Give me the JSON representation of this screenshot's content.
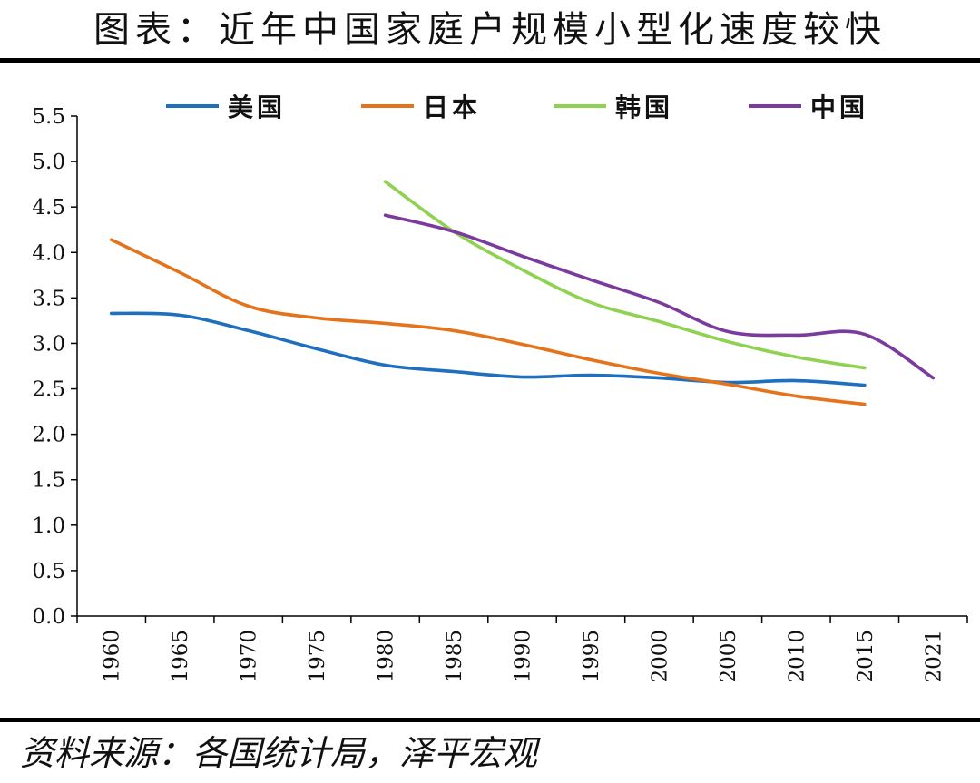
{
  "title": "图表：近年中国家庭户规模小型化速度较快",
  "source": "资料来源：各国统计局，泽平宏观",
  "chart_data": {
    "type": "line",
    "x": [
      "1960",
      "1965",
      "1970",
      "1975",
      "1980",
      "1985",
      "1990",
      "1995",
      "2000",
      "2005",
      "2010",
      "2015",
      "2021"
    ],
    "ylim": [
      0,
      5.5
    ],
    "yticks": [
      "0.0",
      "0.5",
      "1.0",
      "1.5",
      "2.0",
      "2.5",
      "3.0",
      "3.5",
      "4.0",
      "4.5",
      "5.0",
      "5.5"
    ],
    "xlabel": "",
    "ylabel": "",
    "grid": false,
    "legend_position": "top",
    "series": [
      {
        "name": "美国",
        "color": "#1f6fbf",
        "values": [
          3.33,
          3.31,
          3.14,
          2.94,
          2.76,
          2.69,
          2.63,
          2.65,
          2.62,
          2.57,
          2.59,
          2.54,
          null
        ]
      },
      {
        "name": "日本",
        "color": "#e4731b",
        "values": [
          4.14,
          3.78,
          3.41,
          3.28,
          3.22,
          3.14,
          2.99,
          2.82,
          2.67,
          2.55,
          2.42,
          2.33,
          null
        ]
      },
      {
        "name": "韩国",
        "color": "#8fd150",
        "values": [
          null,
          null,
          null,
          null,
          4.78,
          4.23,
          3.81,
          3.45,
          3.24,
          3.02,
          2.85,
          2.73,
          null
        ]
      },
      {
        "name": "中国",
        "color": "#7a3a9e",
        "values": [
          null,
          null,
          null,
          null,
          4.41,
          4.23,
          3.96,
          3.7,
          3.45,
          3.13,
          3.09,
          3.1,
          2.62
        ]
      }
    ]
  }
}
